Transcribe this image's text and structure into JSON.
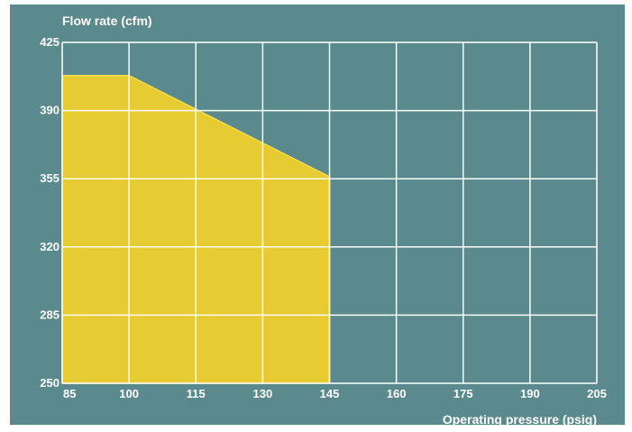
{
  "chart_data": {
    "type": "area",
    "ylabel": "Flow rate (cfm)",
    "xlabel": "Operating pressure (psig)",
    "x_ticks": [
      85,
      100,
      115,
      130,
      145,
      160,
      175,
      190,
      205
    ],
    "y_ticks": [
      250,
      285,
      320,
      355,
      390,
      425
    ],
    "xlim": [
      85,
      205
    ],
    "ylim": [
      250,
      425
    ],
    "grid": true,
    "series": [
      {
        "points": [
          {
            "x": 85,
            "y": 408
          },
          {
            "x": 100,
            "y": 408
          },
          {
            "x": 145,
            "y": 356
          },
          {
            "x": 145,
            "y": 250
          },
          {
            "x": 85,
            "y": 250
          }
        ]
      }
    ],
    "colors": {
      "background": "#5b8a8e",
      "fill": "#e6cb32",
      "edge": "#f2dc55",
      "grid": "#ffffff"
    }
  }
}
